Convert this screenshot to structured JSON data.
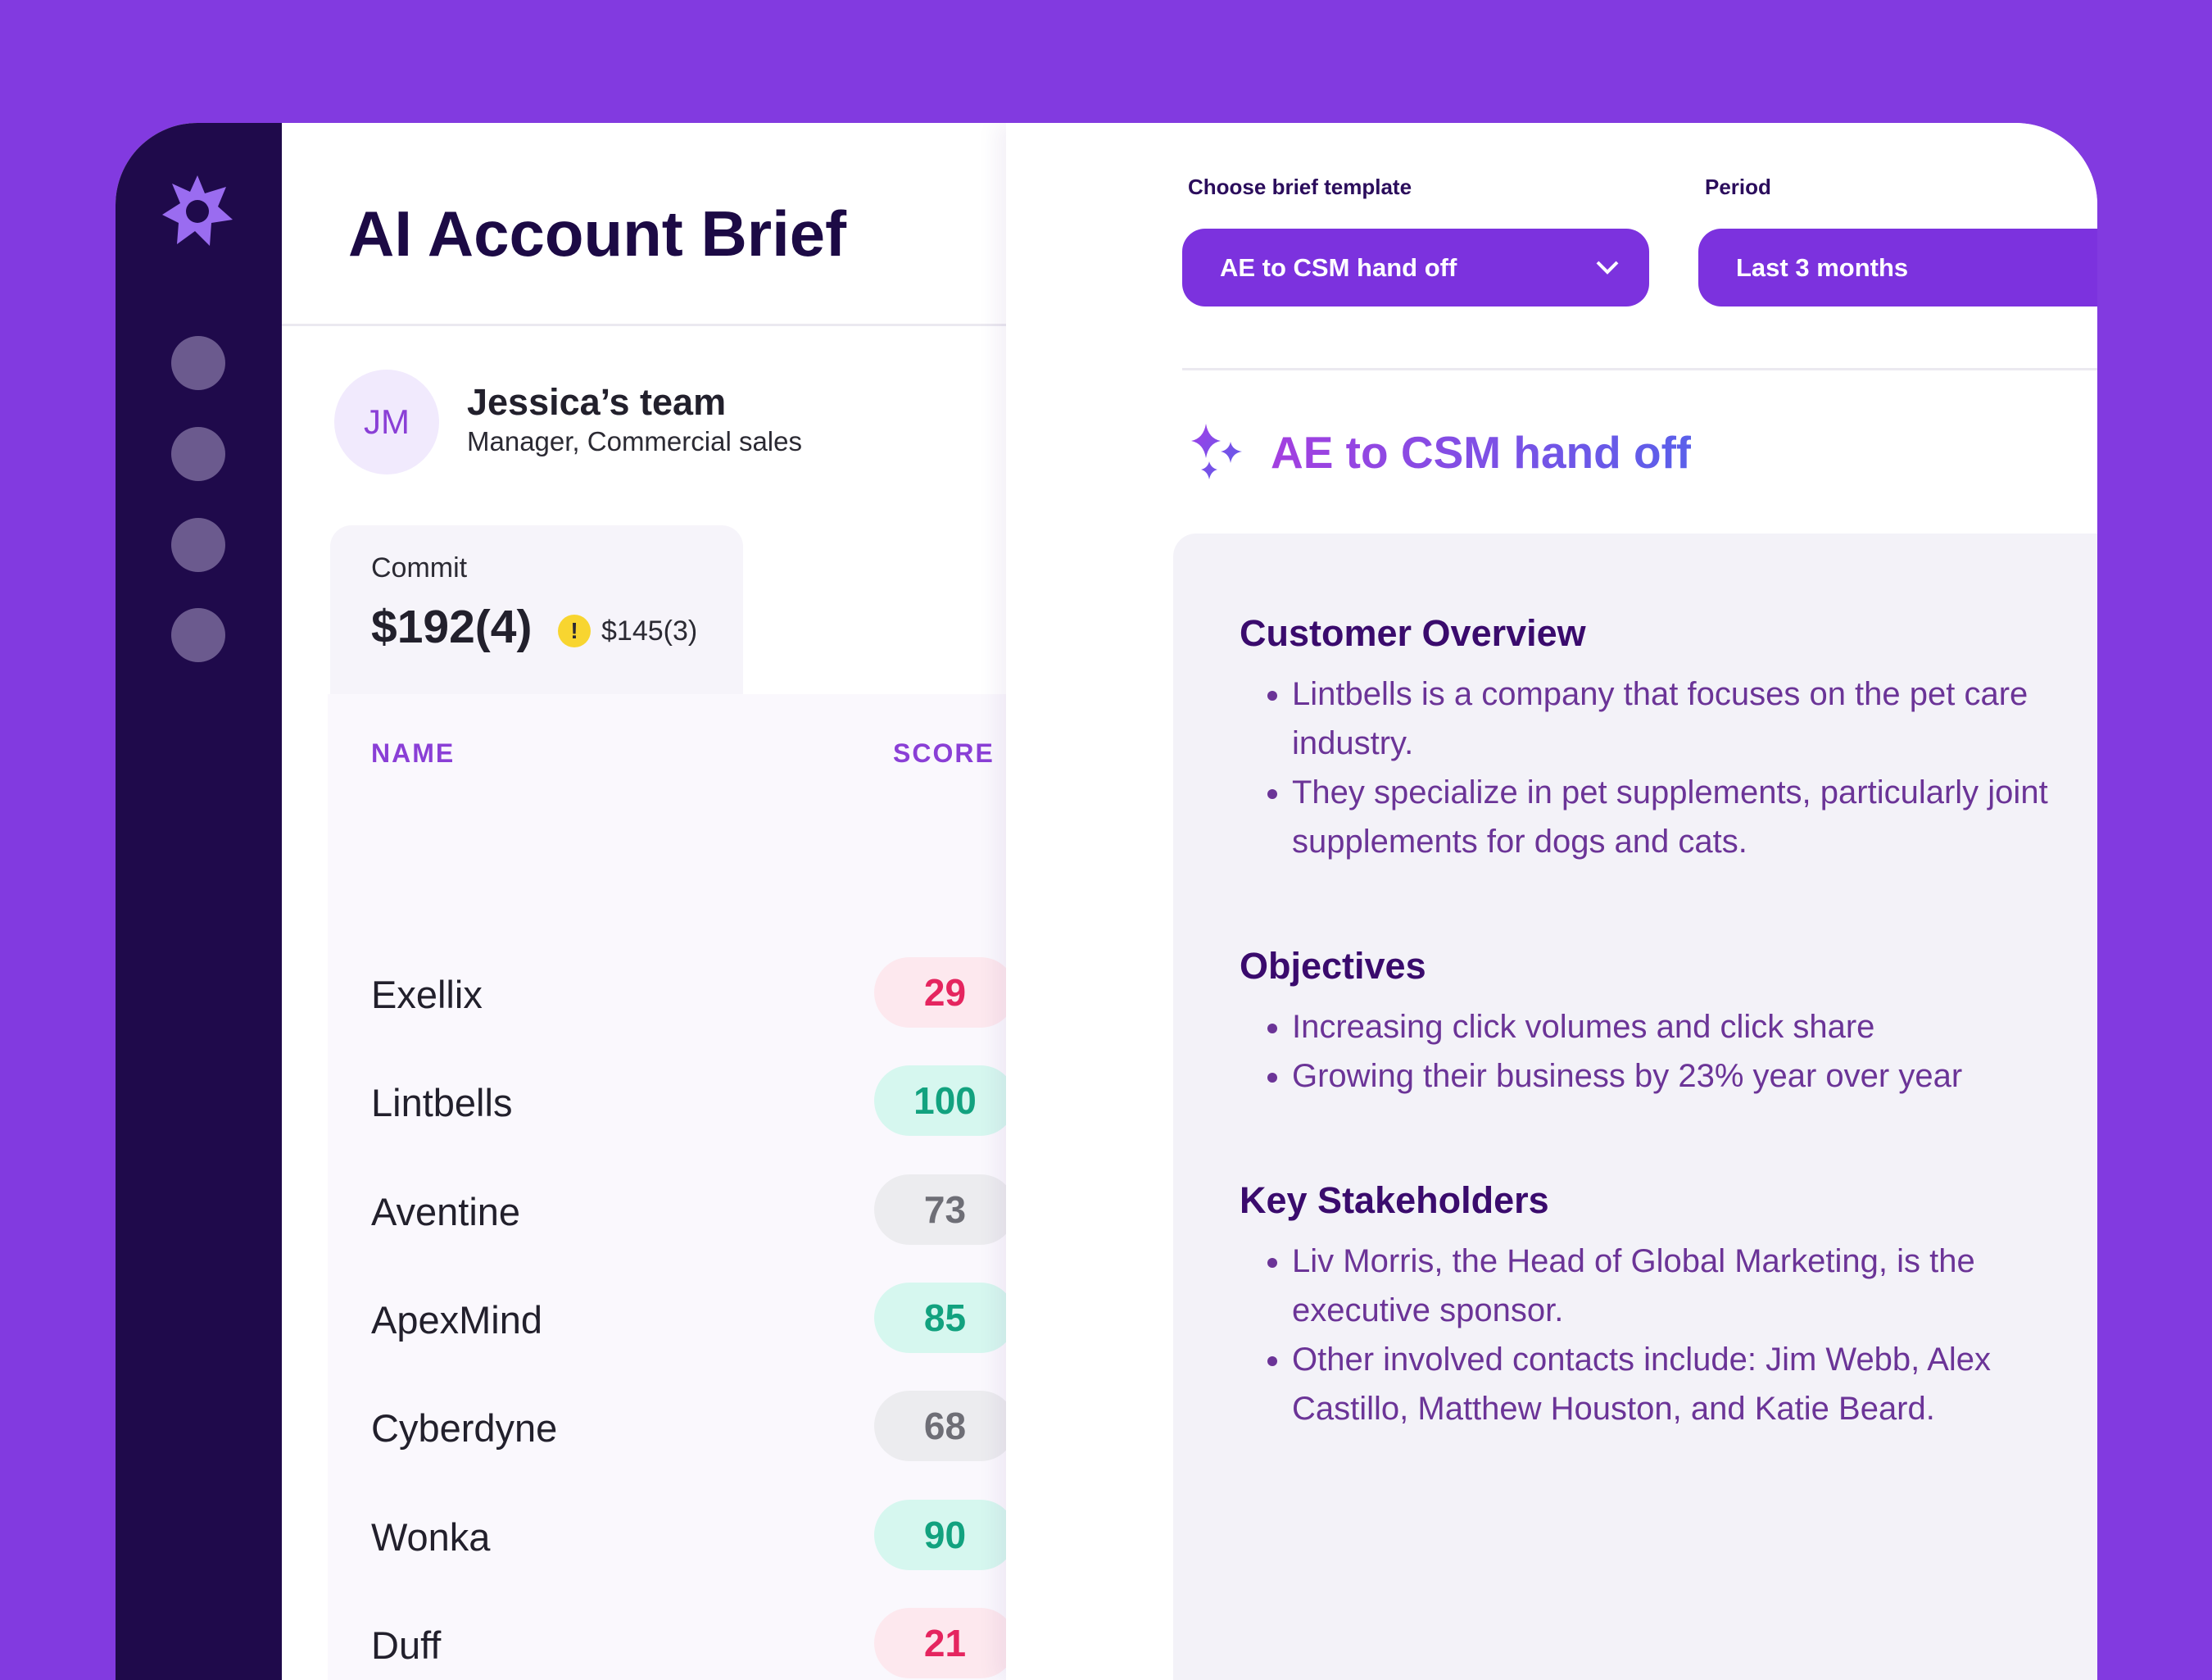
{
  "header": {
    "title": "AI Account Brief"
  },
  "user": {
    "initials": "JM",
    "name": "Jessica’s team",
    "role": "Manager, Commercial sales"
  },
  "commit": {
    "label": "Commit",
    "value": "$192(4)",
    "warning": "!",
    "secondary": "$145(3)"
  },
  "table": {
    "columns": [
      "NAME",
      "SCORE"
    ],
    "rows": [
      {
        "name": "Exellix",
        "score": 29,
        "tone": "red"
      },
      {
        "name": "Lintbells",
        "score": 100,
        "tone": "green"
      },
      {
        "name": "Aventine",
        "score": 73,
        "tone": "gray"
      },
      {
        "name": "ApexMind",
        "score": 85,
        "tone": "green"
      },
      {
        "name": "Cyberdyne",
        "score": 68,
        "tone": "gray"
      },
      {
        "name": "Wonka",
        "score": 90,
        "tone": "green"
      },
      {
        "name": "Duff",
        "score": 21,
        "tone": "red"
      }
    ]
  },
  "controls": {
    "template_label": "Choose brief template",
    "template_value": "AE to CSM hand off",
    "period_label": "Period",
    "period_value": "Last 3 months"
  },
  "brief": {
    "title": "AE to CSM hand off",
    "sections": [
      {
        "heading": "Customer Overview",
        "bullets": [
          "Lintbells is a company that focuses on the pet care industry.",
          "They specialize in pet supplements, particularly joint supplements for dogs and cats."
        ]
      },
      {
        "heading": "Objectives",
        "bullets": [
          "Increasing click volumes and click share",
          "Growing their business by 23% year over year"
        ]
      },
      {
        "heading": "Key Stakeholders",
        "bullets": [
          "Liv Morris, the Head of Global Marketing, is the executive sponsor.",
          "Other involved contacts include: Jim Webb, Alex Castillo, Matthew Houston, and Katie Beard."
        ]
      }
    ]
  }
}
